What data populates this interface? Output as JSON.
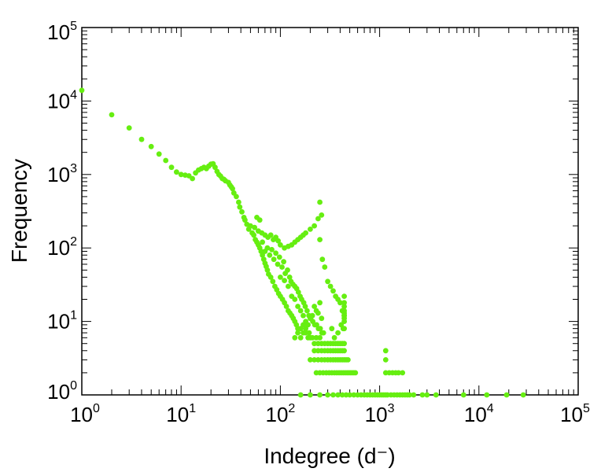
{
  "chart_data": {
    "type": "scatter",
    "xlabel": "Indegree (d⁻)",
    "ylabel": "Frequency",
    "x_scale": "log",
    "y_scale": "log",
    "xlim": [
      1,
      100000
    ],
    "ylim": [
      1,
      100000
    ],
    "x_tick_labels": [
      "10^0",
      "10^1",
      "10^2",
      "10^3",
      "10^4",
      "10^5"
    ],
    "y_tick_labels": [
      "10^0",
      "10^1",
      "10^2",
      "10^3",
      "10^4",
      "10^5"
    ],
    "grid": false,
    "legend": "none",
    "marker_color": "#66ee11",
    "series": [
      {
        "points": [
          [
            1,
            14000
          ],
          [
            2,
            6500
          ],
          [
            3,
            4300
          ],
          [
            4,
            3000
          ],
          [
            5,
            2400
          ],
          [
            6,
            1900
          ],
          [
            7,
            1550
          ],
          [
            8,
            1250
          ],
          [
            9,
            1080
          ],
          [
            10,
            1000
          ],
          [
            11,
            980
          ],
          [
            12,
            960
          ],
          [
            13,
            880
          ],
          [
            14,
            1050
          ],
          [
            15,
            1150
          ],
          [
            16,
            1200
          ],
          [
            17,
            1250
          ],
          [
            18,
            1200
          ],
          [
            19,
            1300
          ],
          [
            20,
            1380
          ],
          [
            21,
            1400
          ],
          [
            22,
            1250
          ],
          [
            23,
            1100
          ],
          [
            24,
            1000
          ],
          [
            25,
            950
          ],
          [
            26,
            880
          ],
          [
            27,
            860
          ],
          [
            28,
            820
          ],
          [
            30,
            780
          ],
          [
            31,
            720
          ],
          [
            32,
            680
          ],
          [
            33,
            640
          ],
          [
            34,
            560
          ],
          [
            36,
            500
          ],
          [
            38,
            420
          ],
          [
            39,
            360
          ],
          [
            41,
            310
          ],
          [
            43,
            260
          ],
          [
            44,
            240
          ],
          [
            46,
            210
          ],
          [
            48,
            180
          ],
          [
            50,
            200
          ],
          [
            52,
            160
          ],
          [
            54,
            150
          ],
          [
            56,
            130
          ],
          [
            58,
            120
          ],
          [
            60,
            110
          ],
          [
            62,
            100
          ],
          [
            64,
            90
          ],
          [
            66,
            80
          ],
          [
            68,
            70
          ],
          [
            70,
            62
          ],
          [
            72,
            56
          ],
          [
            74,
            50
          ],
          [
            76,
            44
          ],
          [
            80,
            40
          ],
          [
            84,
            35
          ],
          [
            88,
            30
          ],
          [
            92,
            27
          ],
          [
            96,
            24
          ],
          [
            100,
            22
          ],
          [
            105,
            20
          ],
          [
            110,
            18
          ],
          [
            115,
            16
          ],
          [
            120,
            14
          ],
          [
            125,
            13
          ],
          [
            130,
            12
          ],
          [
            135,
            11
          ],
          [
            140,
            10
          ],
          [
            145,
            9
          ],
          [
            150,
            8
          ],
          [
            160,
            8
          ],
          [
            170,
            7
          ],
          [
            180,
            7
          ],
          [
            190,
            6
          ],
          [
            200,
            6
          ],
          [
            55,
            190
          ],
          [
            60,
            170
          ],
          [
            65,
            160
          ],
          [
            70,
            150
          ],
          [
            75,
            140
          ],
          [
            80,
            150
          ],
          [
            85,
            130
          ],
          [
            90,
            140
          ],
          [
            95,
            125
          ],
          [
            100,
            110
          ],
          [
            110,
            100
          ],
          [
            120,
            105
          ],
          [
            130,
            110
          ],
          [
            140,
            120
          ],
          [
            150,
            130
          ],
          [
            160,
            140
          ],
          [
            170,
            150
          ],
          [
            180,
            160
          ],
          [
            200,
            180
          ],
          [
            220,
            200
          ],
          [
            240,
            250
          ],
          [
            260,
            280
          ],
          [
            250,
            420
          ],
          [
            58,
            260
          ],
          [
            62,
            240
          ],
          [
            66,
            120
          ],
          [
            70,
            90
          ],
          [
            74,
            100
          ],
          [
            78,
            80
          ],
          [
            82,
            95
          ],
          [
            86,
            70
          ],
          [
            90,
            85
          ],
          [
            94,
            60
          ],
          [
            98,
            75
          ],
          [
            104,
            55
          ],
          [
            108,
            65
          ],
          [
            112,
            45
          ],
          [
            118,
            50
          ],
          [
            124,
            40
          ],
          [
            128,
            35
          ],
          [
            134,
            32
          ],
          [
            140,
            30
          ],
          [
            146,
            28
          ],
          [
            152,
            25
          ],
          [
            158,
            22
          ],
          [
            164,
            20
          ],
          [
            172,
            18
          ],
          [
            178,
            16
          ],
          [
            186,
            14
          ],
          [
            194,
            12
          ],
          [
            202,
            11
          ],
          [
            212,
            10
          ],
          [
            222,
            9
          ],
          [
            232,
            9
          ],
          [
            242,
            8
          ],
          [
            252,
            8
          ],
          [
            262,
            7
          ],
          [
            272,
            7
          ],
          [
            100,
            40
          ],
          [
            110,
            36
          ],
          [
            120,
            30
          ],
          [
            130,
            22
          ],
          [
            140,
            20
          ],
          [
            150,
            16
          ],
          [
            160,
            14
          ],
          [
            170,
            12
          ],
          [
            180,
            10
          ],
          [
            190,
            9
          ],
          [
            200,
            11
          ],
          [
            210,
            12
          ],
          [
            220,
            16
          ],
          [
            230,
            14
          ],
          [
            240,
            13
          ],
          [
            250,
            18
          ],
          [
            260,
            11
          ],
          [
            140,
            6
          ],
          [
            150,
            7
          ],
          [
            160,
            6
          ],
          [
            170,
            9
          ],
          [
            180,
            8
          ],
          [
            195,
            7
          ],
          [
            210,
            6
          ],
          [
            230,
            6
          ],
          [
            250,
            6
          ],
          [
            250,
            130
          ],
          [
            265,
            70
          ],
          [
            280,
            55
          ],
          [
            300,
            35
          ],
          [
            320,
            30
          ],
          [
            340,
            26
          ],
          [
            360,
            22
          ],
          [
            380,
            20
          ],
          [
            400,
            18
          ],
          [
            420,
            14
          ],
          [
            440,
            12
          ],
          [
            220,
            4
          ],
          [
            240,
            4
          ],
          [
            260,
            4
          ],
          [
            280,
            4
          ],
          [
            300,
            4
          ],
          [
            320,
            4
          ],
          [
            340,
            4
          ],
          [
            360,
            4
          ],
          [
            380,
            4
          ],
          [
            400,
            4
          ],
          [
            420,
            4
          ],
          [
            440,
            4
          ],
          [
            200,
            3
          ],
          [
            220,
            3
          ],
          [
            240,
            3
          ],
          [
            260,
            3
          ],
          [
            280,
            3
          ],
          [
            300,
            3
          ],
          [
            320,
            3
          ],
          [
            340,
            3
          ],
          [
            360,
            3
          ],
          [
            380,
            3
          ],
          [
            400,
            3
          ],
          [
            420,
            3
          ],
          [
            440,
            3
          ],
          [
            460,
            3
          ],
          [
            480,
            3
          ],
          [
            220,
            5
          ],
          [
            240,
            5
          ],
          [
            260,
            5
          ],
          [
            280,
            5
          ],
          [
            300,
            5
          ],
          [
            320,
            5
          ],
          [
            340,
            5
          ],
          [
            360,
            5
          ],
          [
            380,
            5
          ],
          [
            400,
            5
          ],
          [
            420,
            5
          ],
          [
            440,
            5
          ],
          [
            230,
            2
          ],
          [
            250,
            2
          ],
          [
            270,
            2
          ],
          [
            290,
            2
          ],
          [
            310,
            2
          ],
          [
            330,
            2
          ],
          [
            350,
            2
          ],
          [
            370,
            2
          ],
          [
            390,
            2
          ],
          [
            410,
            2
          ],
          [
            430,
            2
          ],
          [
            450,
            2
          ],
          [
            470,
            2
          ],
          [
            490,
            2
          ],
          [
            510,
            2
          ],
          [
            530,
            2
          ],
          [
            550,
            2
          ],
          [
            570,
            2
          ],
          [
            330,
            8
          ],
          [
            350,
            6
          ],
          [
            380,
            7
          ],
          [
            410,
            9
          ],
          [
            430,
            8
          ],
          [
            440,
            8
          ],
          [
            440,
            10
          ],
          [
            440,
            11
          ],
          [
            440,
            12
          ],
          [
            440,
            13
          ],
          [
            440,
            14
          ],
          [
            440,
            16
          ],
          [
            440,
            18
          ],
          [
            440,
            22
          ],
          [
            1150,
            4
          ],
          [
            1150,
            3
          ],
          [
            1150,
            2
          ],
          [
            1250,
            2
          ],
          [
            1350,
            2
          ],
          [
            1450,
            2
          ],
          [
            1550,
            2
          ],
          [
            1700,
            2
          ],
          [
            160,
            1
          ],
          [
            200,
            1
          ],
          [
            250,
            1
          ],
          [
            300,
            1
          ],
          [
            340,
            1
          ],
          [
            380,
            1
          ],
          [
            420,
            1
          ],
          [
            460,
            1
          ],
          [
            500,
            1
          ],
          [
            550,
            1
          ],
          [
            600,
            1
          ],
          [
            650,
            1
          ],
          [
            700,
            1
          ],
          [
            750,
            1
          ],
          [
            800,
            1
          ],
          [
            850,
            1
          ],
          [
            900,
            1
          ],
          [
            950,
            1
          ],
          [
            1000,
            1
          ],
          [
            1050,
            1
          ],
          [
            1100,
            1
          ],
          [
            1150,
            1
          ],
          [
            1200,
            1
          ],
          [
            1300,
            1
          ],
          [
            1400,
            1
          ],
          [
            1500,
            1
          ],
          [
            1600,
            1
          ],
          [
            1700,
            1
          ],
          [
            1800,
            1
          ],
          [
            1900,
            1
          ],
          [
            2000,
            1
          ],
          [
            2200,
            1
          ],
          [
            2700,
            1
          ],
          [
            3000,
            1
          ],
          [
            3700,
            1
          ],
          [
            7000,
            1
          ],
          [
            12000,
            1
          ],
          [
            19000,
            1
          ],
          [
            28000,
            1
          ]
        ]
      }
    ]
  }
}
